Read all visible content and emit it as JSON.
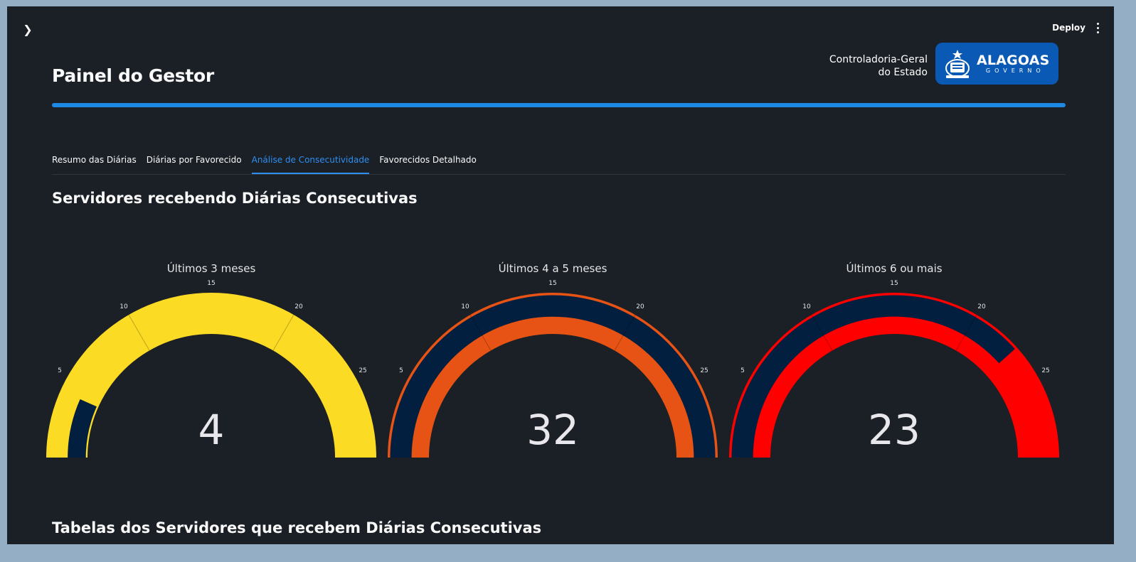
{
  "header": {
    "deploy_label": "Deploy"
  },
  "page": {
    "title": "Painel do Gestor"
  },
  "org": {
    "line1": "Controladoria-Geral",
    "line2": "do Estado",
    "logo_text": "ALAGOAS",
    "logo_subtext": "GOVERNO"
  },
  "tabs": [
    {
      "label": "Resumo das Diárias",
      "active": false
    },
    {
      "label": "Diárias por Favorecido",
      "active": false
    },
    {
      "label": "Análise de Consecutividade",
      "active": true
    },
    {
      "label": "Favorecidos Detalhado",
      "active": false
    }
  ],
  "sections": {
    "gauges_title": "Servidores recebendo Diárias Consecutivas",
    "tables_title": "Tabelas dos Servidores que recebem Diárias Consecutivas"
  },
  "colors": {
    "accent": "#1e88e5",
    "background": "#1b1f26",
    "bar_fill": "#031f3f"
  },
  "chart_data": [
    {
      "type": "gauge",
      "title": "Últimos 3 meses",
      "value": 4,
      "value_label": "4",
      "range": [
        0,
        30
      ],
      "ticks": [
        5,
        10,
        15,
        20,
        25
      ],
      "band_color": "#fcdb24",
      "style": "thick"
    },
    {
      "type": "gauge",
      "title": "Últimos 4 a 5 meses",
      "value": 32,
      "value_label": "32",
      "range": [
        0,
        30
      ],
      "ticks": [
        5,
        10,
        15,
        20,
        25
      ],
      "band_color": "#e65314",
      "style": "ring"
    },
    {
      "type": "gauge",
      "title": "Últimos 6 ou mais",
      "value": 23,
      "value_label": "23",
      "range": [
        0,
        30
      ],
      "ticks": [
        5,
        10,
        15,
        20,
        25
      ],
      "band_color": "#ff0000",
      "style": "ring"
    }
  ]
}
